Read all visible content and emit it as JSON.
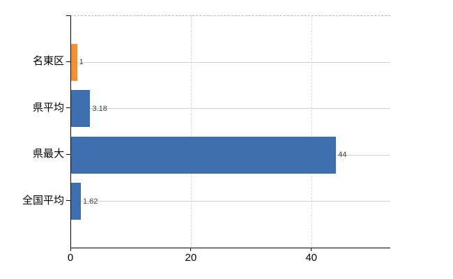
{
  "chart_data": {
    "type": "bar",
    "orientation": "horizontal",
    "title": "",
    "xlabel": "",
    "ylabel": "",
    "categories": [
      "名東区",
      "県平均",
      "県最大",
      "全国平均"
    ],
    "values": [
      1,
      3.18,
      44,
      1.62
    ],
    "value_labels": [
      "1",
      "3.18",
      "44",
      "1.62"
    ],
    "bar_colors": [
      "#f0913a",
      "#3d6eae",
      "#3d6eae",
      "#3d6eae"
    ],
    "x_ticks": [
      0,
      20,
      40
    ],
    "x_tick_labels": [
      "0",
      "20",
      "40"
    ],
    "xlim": [
      0,
      53
    ],
    "grid": true,
    "legend": false,
    "colors": {
      "bar_blue": "#3d6eae",
      "bar_orange": "#f0913a",
      "axis": "#000000",
      "gridline_horizontal": "#cdd4cd",
      "gridline_vertical": "#d7d7d7",
      "plot_top_border": "#b4b4b4",
      "value_label_text": "#3f3f3f",
      "tick_label_text": "#000000",
      "background": "#ffffff"
    }
  }
}
